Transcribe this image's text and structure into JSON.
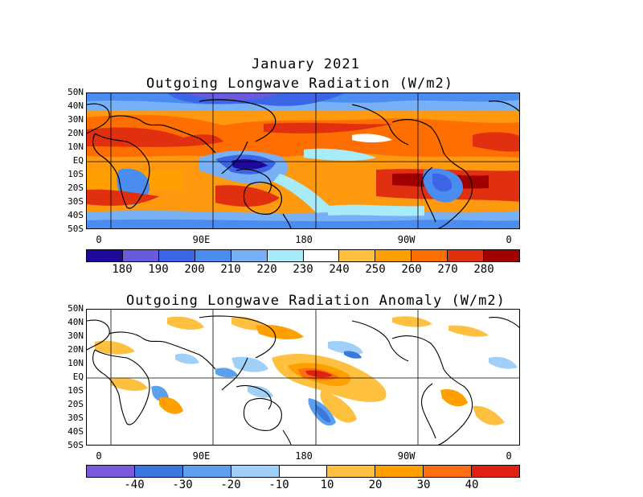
{
  "header": {
    "date": "January 2021",
    "title_top": "Outgoing Longwave Radiation (W/m2)",
    "title_bottom": "Outgoing Longwave Radiation Anomaly (W/m2)"
  },
  "axes": {
    "lat_labels": [
      "50N",
      "40N",
      "30N",
      "20N",
      "10N",
      "EQ",
      "10S",
      "20S",
      "30S",
      "40S",
      "50S"
    ],
    "lon_labels": [
      "0",
      "90E",
      "180",
      "90W",
      "0"
    ],
    "lon_values": [
      0,
      90,
      180,
      270,
      360
    ],
    "lat_range": [
      50,
      -50
    ]
  },
  "colorbar_top": {
    "labels": [
      "180",
      "190",
      "200",
      "210",
      "220",
      "230",
      "240",
      "250",
      "260",
      "270",
      "280"
    ],
    "colors": [
      "#1e0a9a",
      "#6a5adc",
      "#3c64e6",
      "#4a8cf0",
      "#78b0f5",
      "#a8ecfa",
      "#ffffff",
      "#ffc040",
      "#ffa000",
      "#ff6e00",
      "#e03010",
      "#a00000"
    ]
  },
  "colorbar_bottom": {
    "labels": [
      "-40",
      "-30",
      "-20",
      "-10",
      "10",
      "20",
      "30",
      "40"
    ],
    "colors": [
      "#7a5ad8",
      "#3a78e0",
      "#5aa0ee",
      "#a0d0f8",
      "#ffffff",
      "#ffc040",
      "#ffa000",
      "#ff6e10",
      "#e02010"
    ]
  }
}
